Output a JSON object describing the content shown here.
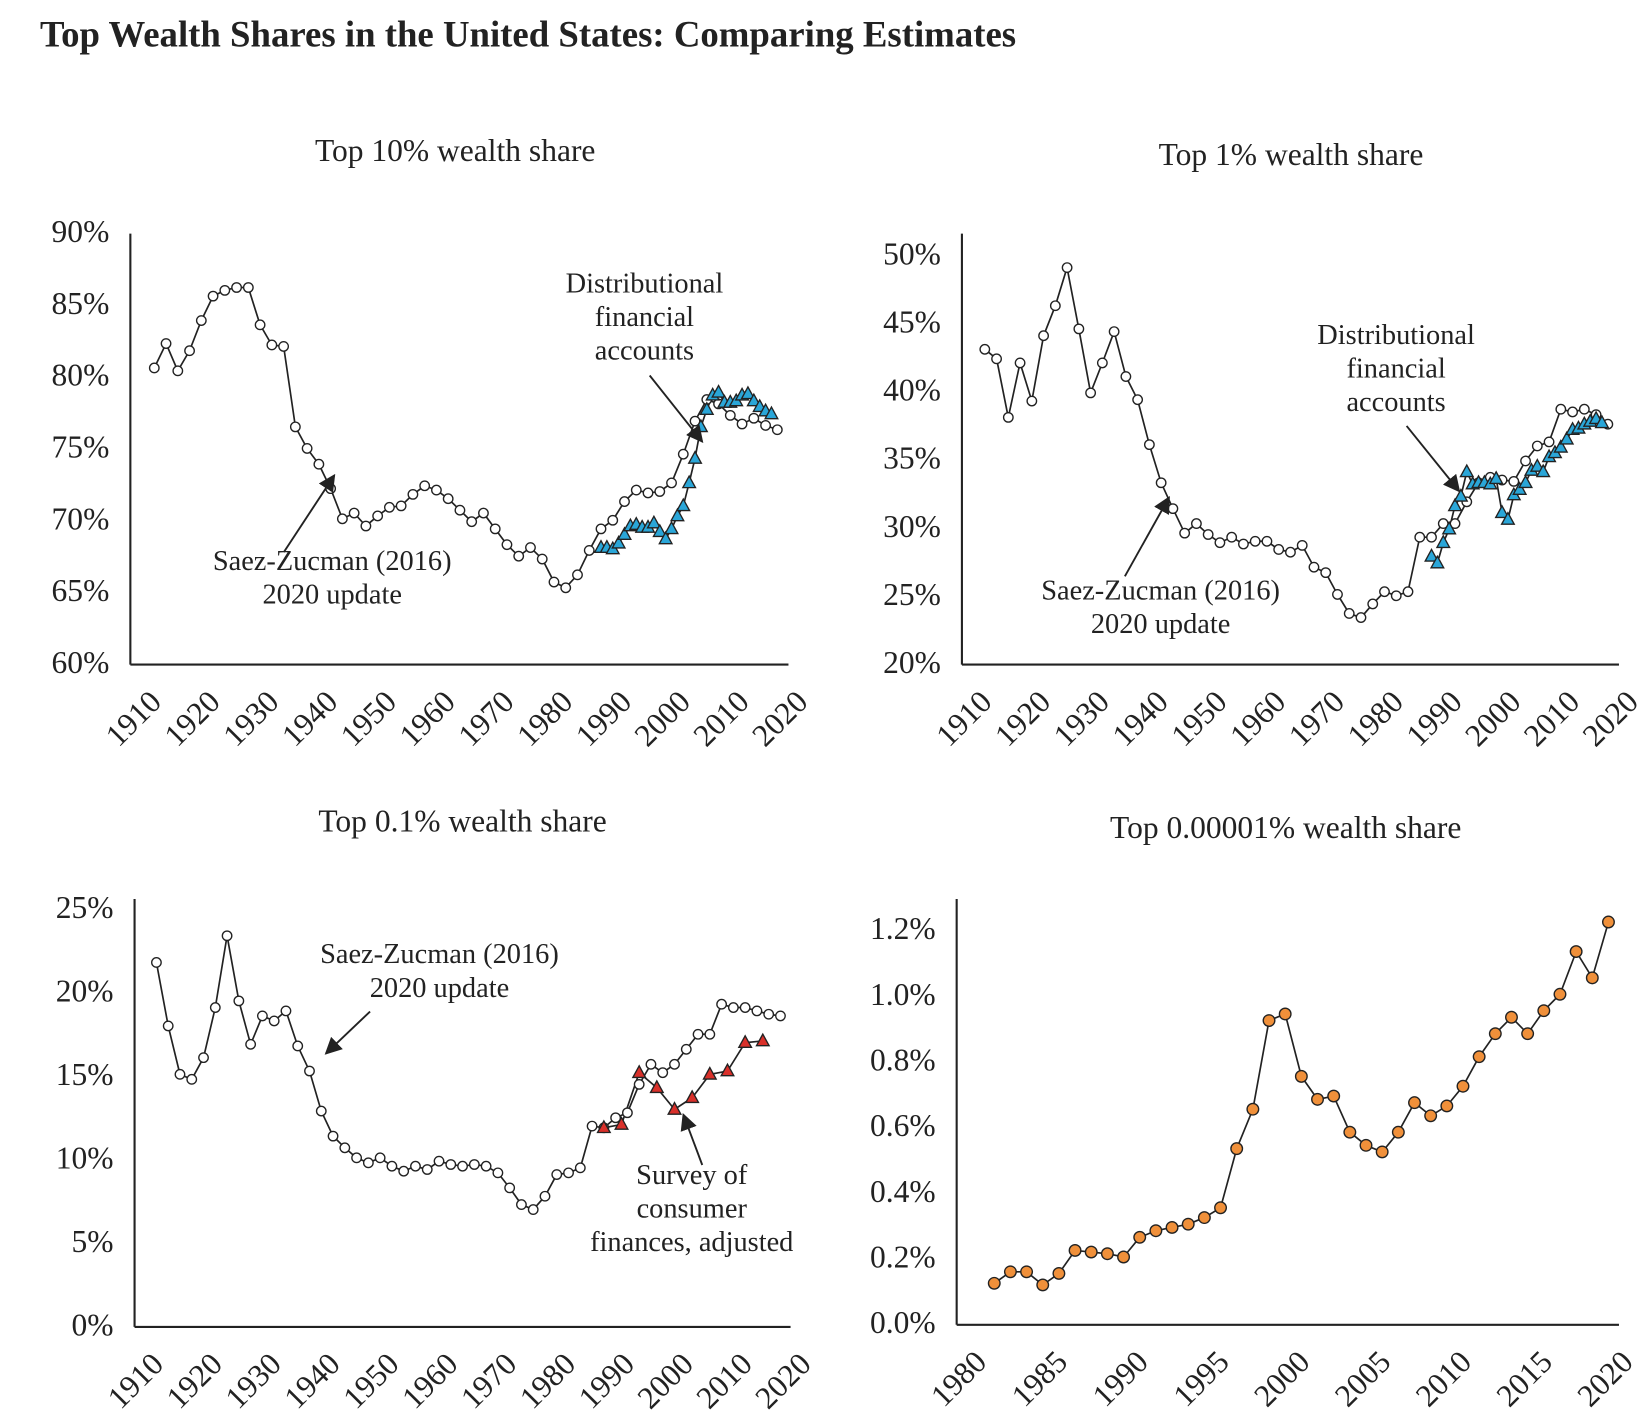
{
  "title": "Top Wealth Shares in the United States: Comparing Estimates",
  "chart_data": [
    {
      "type": "line",
      "title": "Top 10% wealth share",
      "xlim": [
        1910,
        2020
      ],
      "xticks": [
        1910,
        1920,
        1930,
        1940,
        1950,
        1960,
        1970,
        1980,
        1990,
        2000,
        2010,
        2020
      ],
      "ylim": [
        60,
        90
      ],
      "yticks": [
        {
          "value": 60,
          "label": "60%"
        },
        {
          "value": 65,
          "label": "65%"
        },
        {
          "value": 70,
          "label": "70%"
        },
        {
          "value": 75,
          "label": "75%"
        },
        {
          "value": 80,
          "label": "80%"
        },
        {
          "value": 85,
          "label": "85%"
        },
        {
          "value": 90,
          "label": "90%"
        }
      ],
      "grid": false,
      "series": [
        {
          "color": "#ffffff",
          "marker": "circle",
          "x": [
            1913,
            1915,
            1917,
            1919,
            1921,
            1923,
            1925,
            1927,
            1929,
            1931,
            1933,
            1935,
            1937,
            1939,
            1941,
            1943,
            1945,
            1947,
            1949,
            1951,
            1953,
            1955,
            1957,
            1959,
            1961,
            1963,
            1965,
            1967,
            1969,
            1971,
            1973,
            1975,
            1977,
            1979,
            1981,
            1983,
            1985,
            1987,
            1989,
            1991,
            1993,
            1995,
            1997,
            1999,
            2001,
            2003,
            2005,
            2007,
            2009,
            2011,
            2013,
            2015,
            2017,
            2019
          ],
          "values": [
            80.5,
            82.2,
            80.3,
            81.7,
            83.8,
            85.5,
            85.9,
            86.1,
            86.1,
            83.5,
            82.1,
            82,
            76.4,
            74.9,
            73.8,
            72.1,
            70,
            70.4,
            69.5,
            70.2,
            70.8,
            70.9,
            71.7,
            72.3,
            72,
            71.4,
            70.6,
            69.8,
            70.4,
            69.3,
            68.2,
            67.4,
            68,
            67.2,
            65.6,
            65.2,
            66.1,
            67.8,
            69.3,
            69.9,
            71.2,
            72,
            71.8,
            71.9,
            72.5,
            74.5,
            76.8,
            78.3,
            78,
            77.2,
            76.6,
            77,
            76.5,
            76.2
          ]
        },
        {
          "color": "#2aa6d8",
          "marker": "triangle",
          "x": [
            1989,
            1990,
            1991,
            1992,
            1993,
            1994,
            1995,
            1996,
            1997,
            1998,
            1999,
            2000,
            2001,
            2002,
            2003,
            2004,
            2005,
            2006,
            2007,
            2008,
            2009,
            2010,
            2011,
            2012,
            2013,
            2014,
            2015,
            2016,
            2017,
            2018
          ],
          "values": [
            68,
            68,
            67.9,
            68.3,
            68.9,
            69.5,
            69.6,
            69.4,
            69.4,
            69.7,
            69.1,
            68.6,
            69.3,
            70.2,
            70.9,
            72.5,
            74.2,
            76.4,
            77.6,
            78.6,
            78.8,
            78.1,
            78.1,
            78.2,
            78.6,
            78.7,
            78.2,
            77.8,
            77.5,
            77.3
          ]
        }
      ],
      "annotations": [
        {
          "lines": [
            "Distributional",
            "financial",
            "accounts"
          ]
        },
        {
          "lines": [
            "Saez-Zucman (2016)",
            "2020 update"
          ]
        }
      ]
    },
    {
      "type": "line",
      "title": "Top 1% wealth share",
      "xlim": [
        1910,
        2020
      ],
      "xticks": [
        1910,
        1920,
        1930,
        1940,
        1950,
        1960,
        1970,
        1980,
        1990,
        2000,
        2010,
        2020
      ],
      "ylim": [
        20,
        51.5
      ],
      "yticks": [
        {
          "value": 20,
          "label": "20%"
        },
        {
          "value": 25,
          "label": "25%"
        },
        {
          "value": 30,
          "label": "30%"
        },
        {
          "value": 35,
          "label": "35%"
        },
        {
          "value": 40,
          "label": "40%"
        },
        {
          "value": 45,
          "label": "45%"
        },
        {
          "value": 50,
          "label": "50%"
        }
      ],
      "grid": false,
      "series": [
        {
          "color": "#ffffff",
          "marker": "circle",
          "x": [
            1913,
            1915,
            1917,
            1919,
            1921,
            1923,
            1925,
            1927,
            1929,
            1931,
            1933,
            1935,
            1937,
            1939,
            1941,
            1943,
            1945,
            1947,
            1949,
            1951,
            1953,
            1955,
            1957,
            1959,
            1961,
            1963,
            1965,
            1967,
            1969,
            1971,
            1973,
            1975,
            1977,
            1979,
            1981,
            1983,
            1985,
            1987,
            1989,
            1991,
            1993,
            1995,
            1997,
            1999,
            2001,
            2003,
            2005,
            2007,
            2009,
            2011,
            2013,
            2015,
            2017,
            2019
          ],
          "values": [
            43,
            42.3,
            38,
            42,
            39.2,
            44,
            46.2,
            49,
            44.5,
            39.8,
            42,
            44.3,
            41,
            39.3,
            36,
            33.2,
            31.3,
            29.5,
            30.2,
            29.4,
            28.8,
            29.2,
            28.7,
            28.9,
            28.9,
            28.3,
            28.1,
            28.6,
            27,
            26.6,
            25,
            23.6,
            23.3,
            24.3,
            25.2,
            24.9,
            25.2,
            29.2,
            29.2,
            30.2,
            30.2,
            31.8,
            33.2,
            33.6,
            33.4,
            33.3,
            34.8,
            35.9,
            36.2,
            38.6,
            38.4,
            38.6,
            38.2,
            37.5
          ]
        },
        {
          "color": "#2aa6d8",
          "marker": "triangle",
          "x": [
            1989,
            1990,
            1991,
            1992,
            1993,
            1994,
            1995,
            1996,
            1997,
            1998,
            1999,
            2000,
            2001,
            2002,
            2003,
            2004,
            2005,
            2006,
            2007,
            2008,
            2009,
            2010,
            2011,
            2012,
            2013,
            2014,
            2015,
            2016,
            2017,
            2018
          ],
          "values": [
            27.8,
            27.3,
            28.8,
            29.8,
            31.5,
            32.2,
            34,
            33.1,
            33.2,
            33.2,
            33.1,
            33.5,
            31,
            30.5,
            32.3,
            32.7,
            33.2,
            34.1,
            34.4,
            34,
            35.1,
            35.4,
            35.8,
            36.4,
            37.1,
            37.2,
            37.5,
            37.7,
            37.9,
            37.6
          ]
        }
      ],
      "annotations": [
        {
          "lines": [
            "Distributional",
            "financial",
            "accounts"
          ]
        },
        {
          "lines": [
            "Saez-Zucman (2016)",
            "2020 update"
          ]
        }
      ]
    },
    {
      "type": "line",
      "title": "Top 0.1% wealth share",
      "xlim": [
        1910,
        2020
      ],
      "xticks": [
        1910,
        1920,
        1930,
        1940,
        1950,
        1960,
        1970,
        1980,
        1990,
        2000,
        2010,
        2020
      ],
      "ylim": [
        0,
        25.5
      ],
      "yticks": [
        {
          "value": 0,
          "label": "0%"
        },
        {
          "value": 5,
          "label": "5%"
        },
        {
          "value": 10,
          "label": "10%"
        },
        {
          "value": 15,
          "label": "15%"
        },
        {
          "value": 20,
          "label": "20%"
        },
        {
          "value": 25,
          "label": "25%"
        }
      ],
      "grid": false,
      "series": [
        {
          "color": "#ffffff",
          "marker": "circle",
          "x": [
            1913,
            1915,
            1917,
            1919,
            1921,
            1923,
            1925,
            1927,
            1929,
            1931,
            1933,
            1935,
            1937,
            1939,
            1941,
            1943,
            1945,
            1947,
            1949,
            1951,
            1953,
            1955,
            1957,
            1959,
            1961,
            1963,
            1965,
            1967,
            1969,
            1971,
            1973,
            1975,
            1977,
            1979,
            1981,
            1983,
            1985,
            1987,
            1989,
            1991,
            1993,
            1995,
            1997,
            1999,
            2001,
            2003,
            2005,
            2007,
            2009,
            2011,
            2013,
            2015,
            2017,
            2019
          ],
          "values": [
            21.7,
            17.9,
            15,
            14.7,
            16,
            19,
            23.3,
            19.4,
            16.8,
            18.5,
            18.2,
            18.8,
            16.7,
            15.2,
            12.8,
            11.3,
            10.6,
            10,
            9.7,
            10,
            9.5,
            9.2,
            9.5,
            9.3,
            9.8,
            9.6,
            9.5,
            9.6,
            9.5,
            9.1,
            8.2,
            7.2,
            6.9,
            7.7,
            9,
            9.1,
            9.4,
            11.9,
            11.8,
            12.4,
            12.7,
            14.4,
            15.6,
            15.1,
            15.6,
            16.5,
            17.4,
            17.4,
            19.2,
            19,
            19,
            18.8,
            18.6,
            18.5
          ]
        },
        {
          "color": "#d9302a",
          "marker": "triangle",
          "x": [
            1989,
            1992,
            1995,
            1998,
            2001,
            2004,
            2007,
            2010,
            2013,
            2016
          ],
          "values": [
            11.8,
            12,
            15.1,
            14.2,
            12.9,
            13.6,
            15,
            15.2,
            16.9,
            17
          ]
        }
      ],
      "annotations": [
        {
          "lines": [
            "Saez-Zucman (2016)",
            "2020 update"
          ]
        },
        {
          "lines": [
            "Survey of",
            "consumer",
            "finances, adjusted"
          ]
        }
      ]
    },
    {
      "type": "line",
      "title": "Top 0.00001% wealth share",
      "xlim": [
        1980,
        2020
      ],
      "xticks": [
        1980,
        1985,
        1990,
        1995,
        2000,
        2005,
        2010,
        2015,
        2020
      ],
      "ylim": [
        0,
        1.29
      ],
      "yticks": [
        {
          "value": 0,
          "label": "0.0%"
        },
        {
          "value": 0.2,
          "label": "0.2%"
        },
        {
          "value": 0.4,
          "label": "0.4%"
        },
        {
          "value": 0.6,
          "label": "0.6%"
        },
        {
          "value": 0.8,
          "label": "0.8%"
        },
        {
          "value": 1.0,
          "label": "1.0%"
        },
        {
          "value": 1.2,
          "label": "1.2%"
        }
      ],
      "grid": false,
      "series": [
        {
          "color": "#f0903a",
          "marker": "circle",
          "x": [
            1982,
            1983,
            1984,
            1985,
            1986,
            1987,
            1988,
            1989,
            1990,
            1991,
            1992,
            1993,
            1994,
            1995,
            1996,
            1997,
            1998,
            1999,
            2000,
            2001,
            2002,
            2003,
            2004,
            2005,
            2006,
            2007,
            2008,
            2009,
            2010,
            2011,
            2012,
            2013,
            2014,
            2015,
            2016,
            2017,
            2018,
            2019,
            2020
          ],
          "values": [
            0.12,
            0.155,
            0.155,
            0.115,
            0.15,
            0.22,
            0.215,
            0.21,
            0.2,
            0.26,
            0.28,
            0.29,
            0.3,
            0.32,
            0.35,
            0.53,
            0.65,
            0.92,
            0.94,
            0.75,
            0.68,
            0.69,
            0.58,
            0.54,
            0.52,
            0.58,
            0.67,
            0.63,
            0.66,
            0.72,
            0.81,
            0.88,
            0.93,
            0.88,
            0.95,
            1.0,
            1.13,
            1.05,
            1.22
          ]
        }
      ],
      "annotations": []
    }
  ]
}
